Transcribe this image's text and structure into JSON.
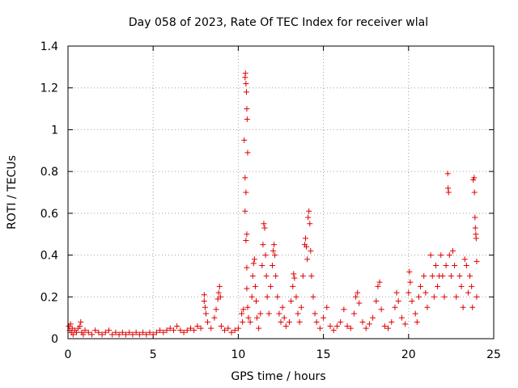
{
  "chart_data": {
    "type": "scatter",
    "title": "Day 058 of 2023, Rate Of TEC Index for receiver wlal",
    "xlabel": "GPS time / hours",
    "ylabel": "ROTI / TECUs",
    "xlim": [
      0,
      25
    ],
    "ylim": [
      0,
      1.4
    ],
    "xticks": [
      0,
      5,
      10,
      15,
      20,
      25
    ],
    "yticks": [
      0,
      0.2,
      0.4,
      0.6,
      0.8,
      1,
      1.2,
      1.4
    ],
    "xtick_labels": [
      "0",
      "5",
      "10",
      "15",
      "20",
      "25"
    ],
    "ytick_labels": [
      "0",
      "0.2",
      "0.4",
      "0.6",
      "0.8",
      "1",
      "1.2",
      "1.4"
    ],
    "grid": true,
    "marker": "+",
    "marker_color": "#e00000",
    "series": [
      {
        "name": "ROTI",
        "points": [
          [
            0.05,
            0.06
          ],
          [
            0.1,
            0.04
          ],
          [
            0.15,
            0.07
          ],
          [
            0.2,
            0.03
          ],
          [
            0.25,
            0.05
          ],
          [
            0.3,
            0.02
          ],
          [
            0.4,
            0.04
          ],
          [
            0.5,
            0.03
          ],
          [
            0.6,
            0.05
          ],
          [
            0.7,
            0.06
          ],
          [
            0.75,
            0.08
          ],
          [
            0.8,
            0.03
          ],
          [
            0.9,
            0.02
          ],
          [
            1.0,
            0.04
          ],
          [
            1.2,
            0.03
          ],
          [
            1.4,
            0.02
          ],
          [
            1.6,
            0.04
          ],
          [
            1.8,
            0.03
          ],
          [
            2.0,
            0.02
          ],
          [
            2.2,
            0.03
          ],
          [
            2.4,
            0.04
          ],
          [
            2.6,
            0.02
          ],
          [
            2.8,
            0.03
          ],
          [
            3.0,
            0.02
          ],
          [
            3.2,
            0.03
          ],
          [
            3.4,
            0.02
          ],
          [
            3.6,
            0.03
          ],
          [
            3.8,
            0.02
          ],
          [
            4.0,
            0.03
          ],
          [
            4.2,
            0.02
          ],
          [
            4.4,
            0.03
          ],
          [
            4.6,
            0.02
          ],
          [
            4.8,
            0.03
          ],
          [
            5.0,
            0.02
          ],
          [
            5.2,
            0.03
          ],
          [
            5.4,
            0.04
          ],
          [
            5.6,
            0.03
          ],
          [
            5.8,
            0.04
          ],
          [
            6.0,
            0.05
          ],
          [
            6.2,
            0.04
          ],
          [
            6.4,
            0.06
          ],
          [
            6.6,
            0.04
          ],
          [
            6.8,
            0.03
          ],
          [
            7.0,
            0.04
          ],
          [
            7.2,
            0.05
          ],
          [
            7.4,
            0.04
          ],
          [
            7.6,
            0.06
          ],
          [
            7.8,
            0.05
          ],
          [
            8.0,
            0.21
          ],
          [
            8.0,
            0.18
          ],
          [
            8.05,
            0.15
          ],
          [
            8.1,
            0.12
          ],
          [
            8.2,
            0.08
          ],
          [
            8.4,
            0.05
          ],
          [
            8.6,
            0.1
          ],
          [
            8.7,
            0.14
          ],
          [
            8.8,
            0.19
          ],
          [
            8.85,
            0.22
          ],
          [
            8.9,
            0.25
          ],
          [
            8.95,
            0.2
          ],
          [
            9.0,
            0.06
          ],
          [
            9.2,
            0.04
          ],
          [
            9.4,
            0.05
          ],
          [
            9.6,
            0.03
          ],
          [
            9.8,
            0.04
          ],
          [
            10.0,
            0.05
          ],
          [
            10.2,
            0.12
          ],
          [
            10.25,
            0.08
          ],
          [
            10.3,
            0.14
          ],
          [
            10.35,
            0.95
          ],
          [
            10.4,
            1.25
          ],
          [
            10.42,
            1.27
          ],
          [
            10.45,
            1.22
          ],
          [
            10.48,
            1.18
          ],
          [
            10.5,
            1.1
          ],
          [
            10.52,
            1.05
          ],
          [
            10.55,
            0.89
          ],
          [
            10.4,
            0.77
          ],
          [
            10.45,
            0.7
          ],
          [
            10.4,
            0.61
          ],
          [
            10.5,
            0.5
          ],
          [
            10.45,
            0.47
          ],
          [
            10.5,
            0.34
          ],
          [
            10.5,
            0.24
          ],
          [
            10.55,
            0.15
          ],
          [
            10.6,
            0.1
          ],
          [
            10.7,
            0.08
          ],
          [
            10.8,
            0.2
          ],
          [
            10.85,
            0.3
          ],
          [
            10.9,
            0.36
          ],
          [
            10.95,
            0.38
          ],
          [
            11.0,
            0.25
          ],
          [
            11.05,
            0.18
          ],
          [
            11.1,
            0.1
          ],
          [
            11.2,
            0.05
          ],
          [
            11.3,
            0.12
          ],
          [
            11.4,
            0.35
          ],
          [
            11.45,
            0.45
          ],
          [
            11.5,
            0.55
          ],
          [
            11.55,
            0.53
          ],
          [
            11.6,
            0.4
          ],
          [
            11.65,
            0.3
          ],
          [
            11.7,
            0.2
          ],
          [
            11.8,
            0.12
          ],
          [
            11.9,
            0.25
          ],
          [
            12.0,
            0.35
          ],
          [
            12.05,
            0.42
          ],
          [
            12.1,
            0.45
          ],
          [
            12.15,
            0.4
          ],
          [
            12.2,
            0.3
          ],
          [
            12.3,
            0.2
          ],
          [
            12.4,
            0.12
          ],
          [
            12.5,
            0.08
          ],
          [
            12.6,
            0.15
          ],
          [
            12.7,
            0.1
          ],
          [
            12.8,
            0.06
          ],
          [
            13.0,
            0.08
          ],
          [
            13.1,
            0.18
          ],
          [
            13.2,
            0.25
          ],
          [
            13.25,
            0.31
          ],
          [
            13.3,
            0.29
          ],
          [
            13.4,
            0.2
          ],
          [
            13.5,
            0.12
          ],
          [
            13.6,
            0.08
          ],
          [
            13.7,
            0.15
          ],
          [
            13.8,
            0.3
          ],
          [
            13.9,
            0.45
          ],
          [
            13.95,
            0.48
          ],
          [
            14.0,
            0.44
          ],
          [
            14.05,
            0.38
          ],
          [
            14.1,
            0.58
          ],
          [
            14.15,
            0.61
          ],
          [
            14.2,
            0.55
          ],
          [
            14.25,
            0.42
          ],
          [
            14.3,
            0.3
          ],
          [
            14.4,
            0.2
          ],
          [
            14.5,
            0.12
          ],
          [
            14.6,
            0.08
          ],
          [
            14.8,
            0.05
          ],
          [
            15.0,
            0.1
          ],
          [
            15.2,
            0.15
          ],
          [
            15.4,
            0.06
          ],
          [
            15.6,
            0.04
          ],
          [
            15.8,
            0.06
          ],
          [
            16.0,
            0.08
          ],
          [
            16.2,
            0.14
          ],
          [
            16.4,
            0.06
          ],
          [
            16.6,
            0.05
          ],
          [
            16.8,
            0.12
          ],
          [
            16.9,
            0.2
          ],
          [
            17.0,
            0.22
          ],
          [
            17.1,
            0.17
          ],
          [
            17.3,
            0.08
          ],
          [
            17.5,
            0.05
          ],
          [
            17.7,
            0.07
          ],
          [
            17.9,
            0.1
          ],
          [
            18.1,
            0.18
          ],
          [
            18.2,
            0.25
          ],
          [
            18.3,
            0.27
          ],
          [
            18.4,
            0.14
          ],
          [
            18.6,
            0.06
          ],
          [
            18.8,
            0.05
          ],
          [
            19.0,
            0.08
          ],
          [
            19.2,
            0.15
          ],
          [
            19.3,
            0.22
          ],
          [
            19.4,
            0.18
          ],
          [
            19.6,
            0.1
          ],
          [
            19.8,
            0.07
          ],
          [
            20.0,
            0.22
          ],
          [
            20.05,
            0.32
          ],
          [
            20.1,
            0.27
          ],
          [
            20.2,
            0.18
          ],
          [
            20.4,
            0.12
          ],
          [
            20.5,
            0.08
          ],
          [
            20.6,
            0.2
          ],
          [
            20.7,
            0.25
          ],
          [
            20.9,
            0.3
          ],
          [
            21.0,
            0.22
          ],
          [
            21.1,
            0.15
          ],
          [
            21.3,
            0.4
          ],
          [
            21.4,
            0.3
          ],
          [
            21.5,
            0.2
          ],
          [
            21.6,
            0.35
          ],
          [
            21.7,
            0.25
          ],
          [
            21.8,
            0.3
          ],
          [
            21.9,
            0.4
          ],
          [
            22.0,
            0.3
          ],
          [
            22.1,
            0.2
          ],
          [
            22.2,
            0.35
          ],
          [
            22.3,
            0.79
          ],
          [
            22.32,
            0.72
          ],
          [
            22.35,
            0.7
          ],
          [
            22.4,
            0.4
          ],
          [
            22.5,
            0.3
          ],
          [
            22.6,
            0.42
          ],
          [
            22.7,
            0.35
          ],
          [
            22.8,
            0.2
          ],
          [
            23.0,
            0.3
          ],
          [
            23.1,
            0.25
          ],
          [
            23.2,
            0.15
          ],
          [
            23.3,
            0.38
          ],
          [
            23.4,
            0.35
          ],
          [
            23.5,
            0.22
          ],
          [
            23.6,
            0.3
          ],
          [
            23.7,
            0.25
          ],
          [
            23.75,
            0.15
          ],
          [
            23.8,
            0.76
          ],
          [
            23.85,
            0.77
          ],
          [
            23.87,
            0.7
          ],
          [
            23.9,
            0.58
          ],
          [
            23.92,
            0.53
          ],
          [
            23.95,
            0.5
          ],
          [
            23.97,
            0.48
          ],
          [
            24.0,
            0.37
          ],
          [
            24.0,
            0.2
          ]
        ]
      }
    ]
  }
}
